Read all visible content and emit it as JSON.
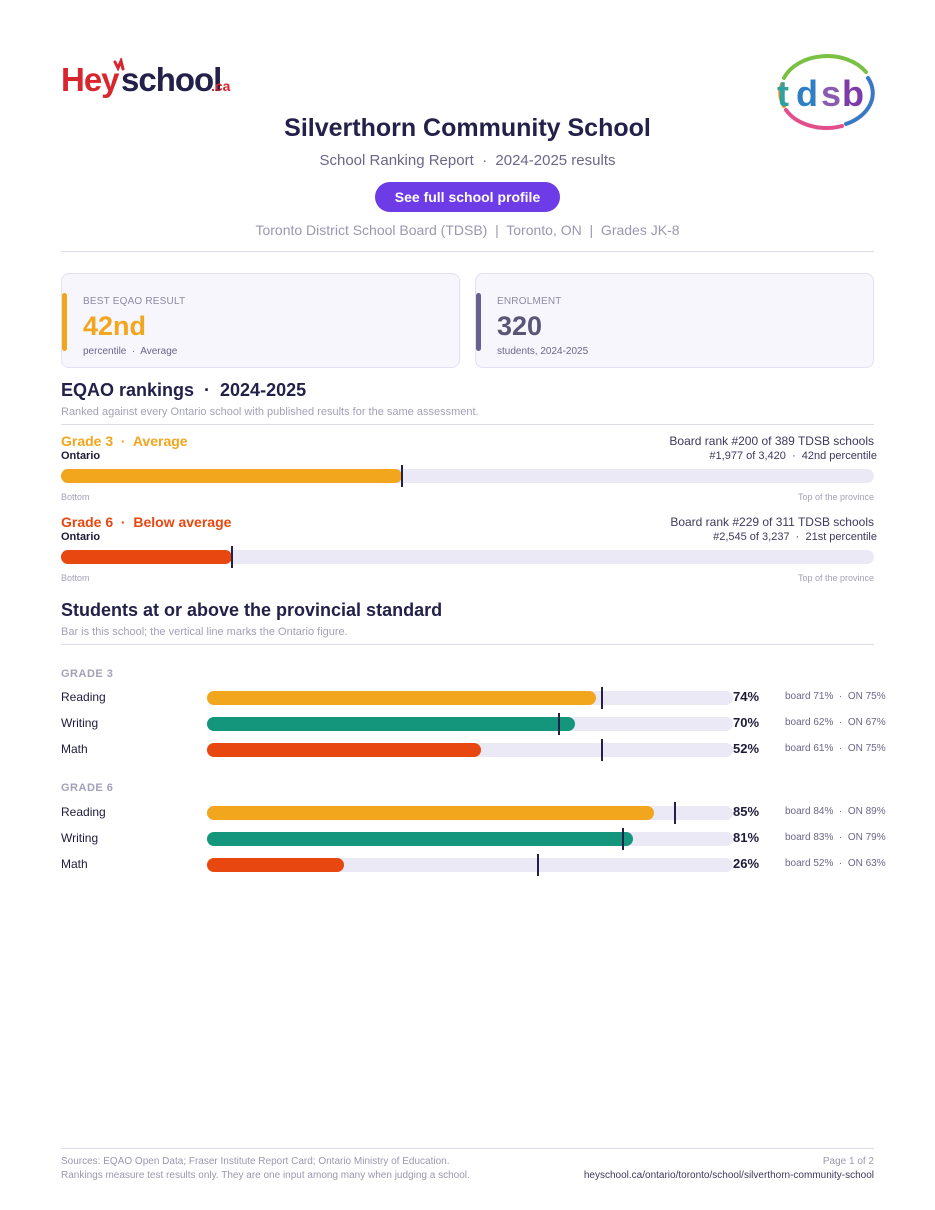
{
  "brand": {
    "logo_text": "Heyschool.ca",
    "board_logo_text": "tdsb"
  },
  "header": {
    "title": "Silverthorn Community School",
    "subtitle": "School Ranking Report  ·  2024-2025 results",
    "profile_button": "See full school profile",
    "meta": "Toronto District School Board (TDSB)  |  Toronto, ON  |  Grades JK-8"
  },
  "cards": [
    {
      "label": "BEST EQAO RESULT",
      "value": "42nd",
      "sub": "percentile  ·  Average",
      "accent": "#f2a61d",
      "value_color": "#f2a61d"
    },
    {
      "label": "ENROLMENT",
      "value": "320",
      "sub": "students, 2024-2025",
      "accent": "#6a5f91",
      "value_color": "#5a5577"
    }
  ],
  "rankings": {
    "title": "EQAO rankings  ·  2024-2025",
    "note": "Ranked against every Ontario school with published results for the same assessment.",
    "rows": [
      {
        "title": "Grade 3  ·  Average",
        "scope": "Ontario",
        "board_rank": "Board rank #200 of 389 TDSB schools",
        "ontario_rank": "#1,977 of 3,420  ·  42nd percentile",
        "percentile": 42,
        "color": "#f2a61d",
        "low_label": "Bottom",
        "high_label": "Top of the province"
      },
      {
        "title": "Grade 6  ·  Below average",
        "scope": "Ontario",
        "board_rank": "Board rank #229 of 311 TDSB schools",
        "ontario_rank": "#2,545 of 3,237  ·  21st percentile",
        "percentile": 21,
        "color": "#e8470f",
        "low_label": "Bottom",
        "high_label": "Top of the province"
      }
    ]
  },
  "standard": {
    "title": "Students at or above the provincial standard",
    "note": "Bar is this school; the vertical line marks the Ontario figure.",
    "grades": [
      {
        "label": "GRADE 3",
        "subjects": [
          {
            "name": "Reading",
            "pct": 74,
            "pct_label": "74%",
            "ontario": 75,
            "comparison": "board 71%  ·  ON 75%",
            "color": "#f2a61d"
          },
          {
            "name": "Writing",
            "pct": 70,
            "pct_label": "70%",
            "ontario": 67,
            "comparison": "board 62%  ·  ON 67%",
            "color": "#13967c"
          },
          {
            "name": "Math",
            "pct": 52,
            "pct_label": "52%",
            "ontario": 75,
            "comparison": "board 61%  ·  ON 75%",
            "color": "#e8470f"
          }
        ]
      },
      {
        "label": "GRADE 6",
        "subjects": [
          {
            "name": "Reading",
            "pct": 85,
            "pct_label": "85%",
            "ontario": 89,
            "comparison": "board 84%  ·  ON 89%",
            "color": "#f2a61d"
          },
          {
            "name": "Writing",
            "pct": 81,
            "pct_label": "81%",
            "ontario": 79,
            "comparison": "board 83%  ·  ON 79%",
            "color": "#13967c"
          },
          {
            "name": "Math",
            "pct": 26,
            "pct_label": "26%",
            "ontario": 63,
            "comparison": "board 52%  ·  ON 63%",
            "color": "#e8470f"
          }
        ]
      }
    ]
  },
  "footer": {
    "sources": "Sources: EQAO Open Data; Fraser Institute Report Card; Ontario Ministry of Education.",
    "disclaimer": "Rankings measure test results only. They are one input among many when judging a school.",
    "page": "Page 1 of 2",
    "url": "heyschool.ca/ontario/toronto/school/silverthorn-community-school"
  }
}
